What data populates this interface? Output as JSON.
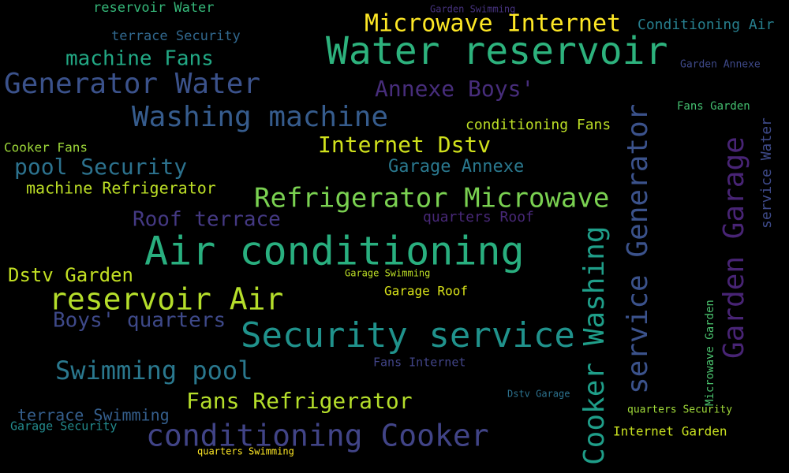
{
  "words": [
    {
      "text": "Air conditioning",
      "color": "#29af7f"
    },
    {
      "text": "Water reservoir",
      "color": "#2db27d"
    },
    {
      "text": "Security service",
      "color": "#20928c"
    },
    {
      "text": "conditioning Cooker",
      "color": "#414487"
    },
    {
      "text": "Generator Water",
      "color": "#3b528b"
    },
    {
      "text": "Washing machine",
      "color": "#365c8d"
    },
    {
      "text": "reservoir Air",
      "color": "#b5de2b"
    },
    {
      "text": "Refrigerator Microwave",
      "color": "#7ad151"
    },
    {
      "text": "Microwave Internet",
      "color": "#fde725"
    },
    {
      "text": "Swimming pool",
      "color": "#2a788e"
    },
    {
      "text": "Fans Refrigerator",
      "color": "#b5de2b"
    },
    {
      "text": "Internet Dstv",
      "color": "#d0e11c"
    },
    {
      "text": "pool Security",
      "color": "#2c728e"
    },
    {
      "text": "Annexe Boys'",
      "color": "#472d7b"
    },
    {
      "text": "machine Fans",
      "color": "#22a884"
    },
    {
      "text": "Roof terrace",
      "color": "#443983"
    },
    {
      "text": "Boys' quarters",
      "color": "#3e4989"
    },
    {
      "text": "Dstv Garden",
      "color": "#c2df23"
    },
    {
      "text": "Garage Annexe",
      "color": "#2a788e"
    },
    {
      "text": "conditioning Fans",
      "color": "#bddf26"
    },
    {
      "text": "terrace Security",
      "color": "#31688e"
    },
    {
      "text": "reservoir Water",
      "color": "#35b779"
    },
    {
      "text": "Conditioning Air",
      "color": "#277f8e"
    },
    {
      "text": "Garden Annexe",
      "color": "#3e4989"
    },
    {
      "text": "Fans Garden",
      "color": "#44bf70"
    },
    {
      "text": "Cooker Fans",
      "color": "#9fda3a"
    },
    {
      "text": "machine Refrigerator",
      "color": "#bddf26"
    },
    {
      "text": "quarters Roof",
      "color": "#482878"
    },
    {
      "text": "Garage Swimming",
      "color": "#bddf26"
    },
    {
      "text": "Garage Roof",
      "color": "#d8e219"
    },
    {
      "text": "Fans Internet",
      "color": "#414487"
    },
    {
      "text": "terrace Swimming",
      "color": "#355f8d"
    },
    {
      "text": "Garage Security",
      "color": "#238a8d"
    },
    {
      "text": "quarters Swimming",
      "color": "#fde725"
    },
    {
      "text": "Dstv Garage",
      "color": "#2c728e"
    },
    {
      "text": "quarters Security",
      "color": "#a0da39"
    },
    {
      "text": "Internet Garden",
      "color": "#c8e020"
    },
    {
      "text": "Garden Swimming",
      "color": "#46327e"
    },
    {
      "text": "Cooker Washing",
      "color": "#1f9e89"
    },
    {
      "text": "service Generator",
      "color": "#3b528b"
    },
    {
      "text": "Garden Garage",
      "color": "#482475"
    },
    {
      "text": "service Water",
      "color": "#3e4a89"
    },
    {
      "text": "Microwave Garden",
      "color": "#4ac16d"
    }
  ]
}
